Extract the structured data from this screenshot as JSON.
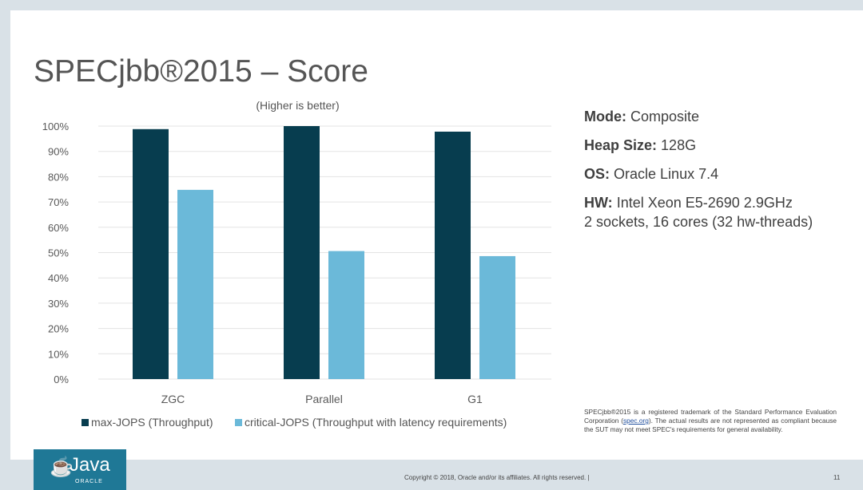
{
  "slide": {
    "title": "SPECjbb®2015 – Score",
    "page_number": "11",
    "copyright": "Copyright © 2018, Oracle and/or its affiliates. All rights reserved.  |"
  },
  "info": [
    {
      "label": "Mode:",
      "value": "Composite"
    },
    {
      "label": "Heap Size:",
      "value": "128G"
    },
    {
      "label": "OS:",
      "value": "Oracle Linux 7.4"
    },
    {
      "label": "HW:",
      "value": "Intel Xeon E5-2690 2.9GHz",
      "value2": "2 sockets, 16 cores (32 hw-threads)"
    }
  ],
  "disclaimer": {
    "pre": "SPECjbb®2015 is a registered trademark of the Standard Performance Evaluation Corporation (",
    "link": "spec.org",
    "post": "). The actual results are not represented as compliant because the SUT may not meet SPEC's requirements for general availability."
  },
  "logo": {
    "text": "Java",
    "sub": "ORACLE"
  },
  "chart_data": {
    "type": "bar",
    "subtitle": "(Higher is better)",
    "categories": [
      "ZGC",
      "Parallel",
      "G1"
    ],
    "series": [
      {
        "name": "max-JOPS (Throughput)",
        "values": [
          98.8,
          100,
          97.8
        ],
        "color": "#073d4f"
      },
      {
        "name": "critical-JOPS (Throughput with latency requirements)",
        "values": [
          74.8,
          50.6,
          48.6
        ],
        "color": "#6bb9d9"
      }
    ],
    "yticks": [
      "0%",
      "10%",
      "20%",
      "30%",
      "40%",
      "50%",
      "60%",
      "70%",
      "80%",
      "90%",
      "100%"
    ],
    "ylim": [
      0,
      100
    ],
    "grid": true,
    "legend": "bottom"
  }
}
